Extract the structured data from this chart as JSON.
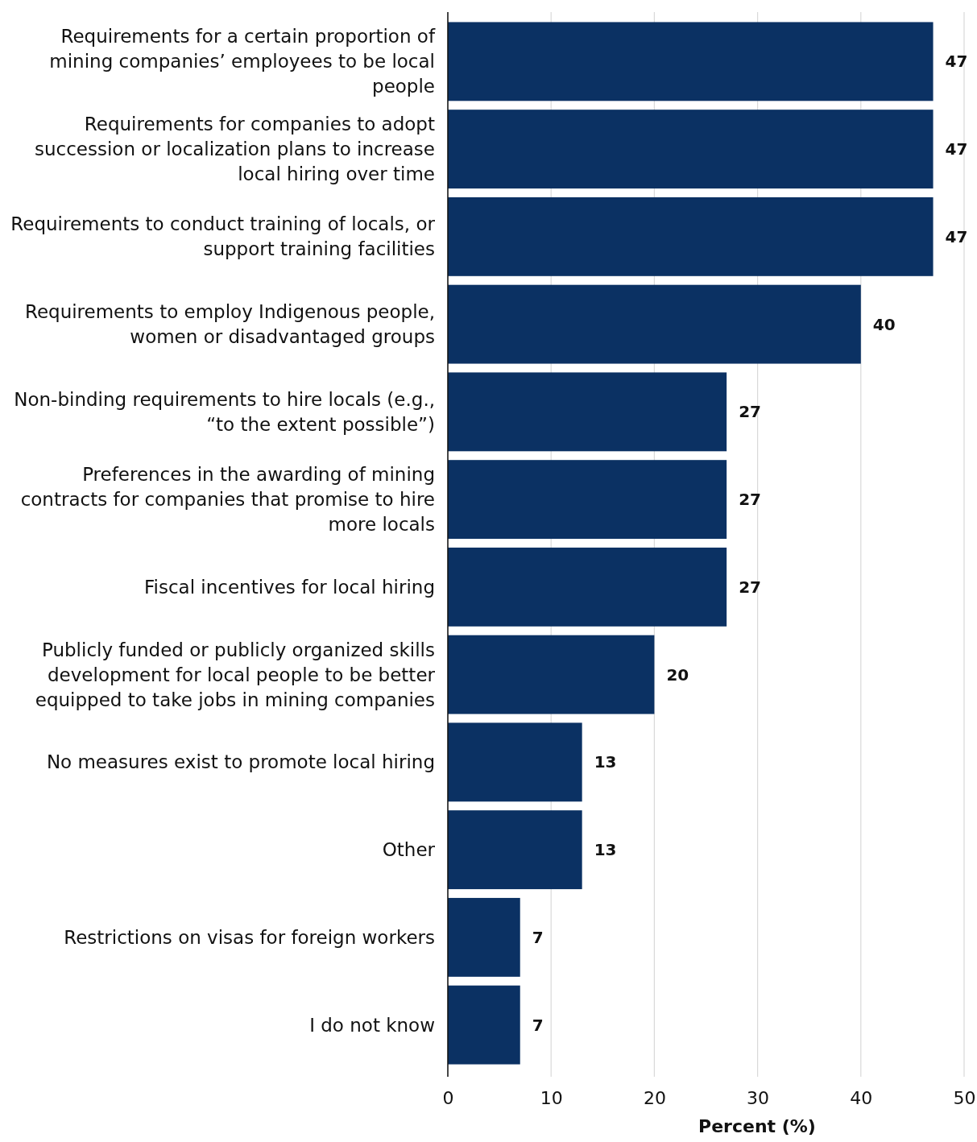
{
  "chart_data": {
    "type": "bar",
    "orientation": "horizontal",
    "xlabel": "Percent (%)",
    "categories": [
      "Requirements for a certain proportion of mining companies’ employees to be local people",
      "Requirements for companies to adopt succession or localization plans to increase local hiring over time",
      "Requirements to conduct training of locals, or support training facilities",
      "Requirements to employ Indigenous people, women or disadvantaged groups",
      "Non-binding requirements to hire locals (e.g., “to the extent possible”)",
      "Preferences in the awarding of mining contracts for companies that promise to hire more locals",
      "Fiscal incentives for local hiring",
      "Publicly funded or publicly organized skills development for local people to be better equipped to take jobs in mining companies",
      "No measures exist to promote local hiring",
      "Other",
      "Restrictions on visas for foreign workers",
      "I do not know"
    ],
    "values": [
      47,
      47,
      47,
      40,
      27,
      27,
      27,
      20,
      13,
      13,
      7,
      7
    ],
    "color": "#0b3163",
    "xlim": [
      0,
      50
    ],
    "xticks": [
      0,
      10,
      20,
      30,
      40,
      50
    ],
    "grid": "x",
    "data_labels": true
  }
}
